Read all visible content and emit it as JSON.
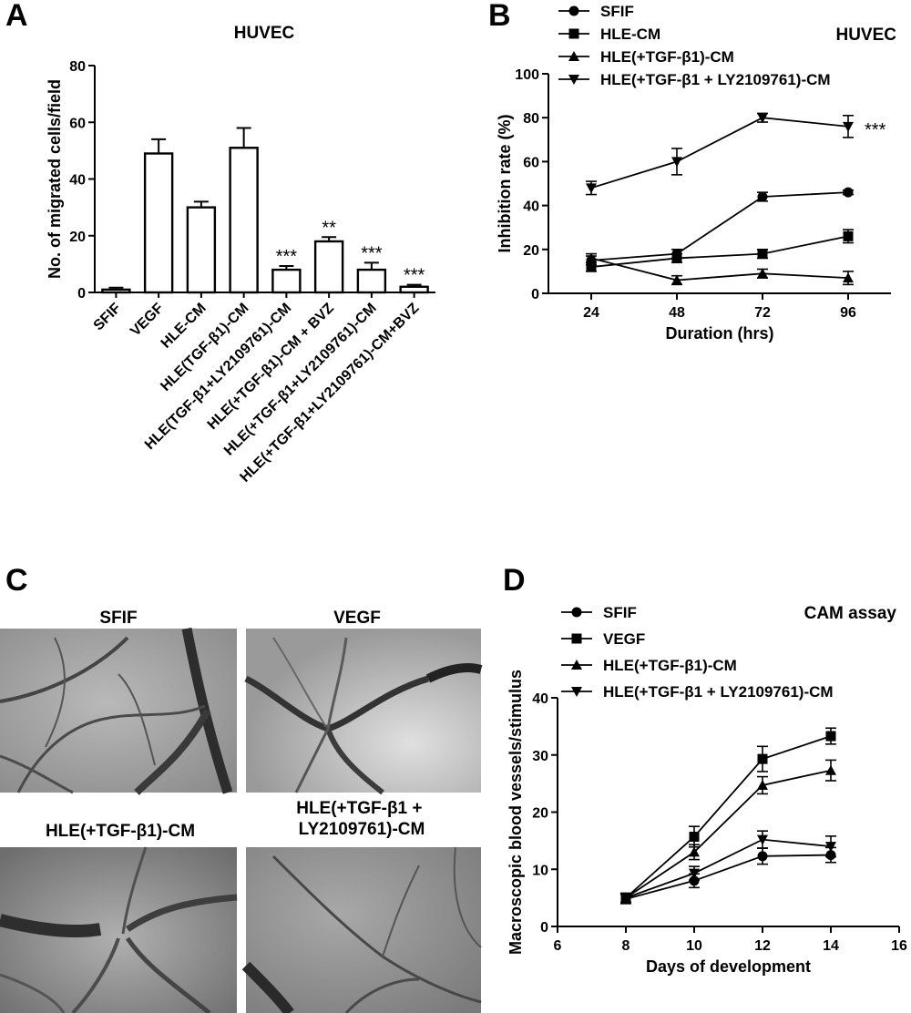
{
  "panels": {
    "A": "A",
    "B": "B",
    "C": "C",
    "D": "D"
  },
  "chart_data": [
    {
      "panel": "A",
      "type": "bar",
      "title": "HUVEC",
      "ylabel": "No. of migrated cells/field",
      "xlabel": "",
      "ylim": [
        0,
        80
      ],
      "yticks": [
        0,
        20,
        40,
        60,
        80
      ],
      "categories": [
        "SFIF",
        "VEGF",
        "HLE-CM",
        "HLE(TGF-β1)-CM",
        "HLE(TGF-β1+LY2109761)-CM",
        "HLE(+TGF-β1)-CM + BVZ",
        "HLE(+TGF-β1+LY2109761)-CM",
        "HLE(+TGF-β1+LY2109761)-CM+BVZ"
      ],
      "values": [
        1,
        49,
        30,
        51,
        8,
        18,
        8,
        2
      ],
      "errors": [
        0.7,
        5,
        2,
        7,
        1.3,
        1.5,
        2.5,
        0.7
      ],
      "significance": [
        "",
        "",
        "",
        "",
        "***",
        "**",
        "***",
        "***"
      ]
    },
    {
      "panel": "B",
      "type": "line",
      "title": "HUVEC",
      "xlabel": "Duration (hrs)",
      "ylabel": "Inhibition  rate (%)",
      "xticks": [
        24,
        48,
        72,
        96
      ],
      "ylim": [
        0,
        100
      ],
      "yticks": [
        0,
        20,
        40,
        60,
        80,
        100
      ],
      "legend_position": "top-left",
      "series": [
        {
          "name": "SFIF",
          "marker": "circle",
          "x": [
            24,
            48,
            72,
            96
          ],
          "values": [
            15,
            18,
            44,
            46
          ],
          "errors": [
            2,
            2,
            2,
            1
          ]
        },
        {
          "name": "HLE-CM",
          "marker": "square",
          "x": [
            24,
            48,
            72,
            96
          ],
          "values": [
            12,
            16,
            18,
            26
          ],
          "errors": [
            2,
            2,
            2,
            3
          ]
        },
        {
          "name": "HLE(+TGF-β1)-CM",
          "marker": "triangle-up",
          "x": [
            24,
            48,
            72,
            96
          ],
          "values": [
            16,
            6,
            9,
            7
          ],
          "errors": [
            2,
            2,
            2,
            3
          ]
        },
        {
          "name": "HLE(+TGF-β1 + LY2109761)-CM",
          "marker": "triangle-down",
          "x": [
            24,
            48,
            72,
            96
          ],
          "values": [
            48,
            60,
            80,
            76
          ],
          "errors": [
            3,
            6,
            2,
            5
          ]
        }
      ],
      "annotations": [
        {
          "text": "***",
          "x": 96,
          "y": 76
        }
      ]
    },
    {
      "panel": "D",
      "type": "line",
      "title": "CAM assay",
      "xlabel": "Days of development",
      "ylabel": "Macroscopic blood vessels/stimulus",
      "xlim": [
        6,
        16
      ],
      "xticks": [
        6,
        8,
        10,
        12,
        14,
        16
      ],
      "ylim": [
        0,
        40
      ],
      "yticks": [
        0,
        10,
        20,
        30,
        40
      ],
      "legend_position": "top-left",
      "series": [
        {
          "name": "SFIF",
          "marker": "circle",
          "x": [
            8,
            10,
            12,
            14
          ],
          "values": [
            4.8,
            8,
            12.3,
            12.5
          ],
          "errors": [
            0.8,
            1.2,
            1.4,
            1.3
          ]
        },
        {
          "name": "VEGF",
          "marker": "square",
          "x": [
            8,
            10,
            12,
            14
          ],
          "values": [
            5,
            15.7,
            29.3,
            33.3
          ],
          "errors": [
            0.8,
            1.8,
            2.2,
            1.4
          ]
        },
        {
          "name": "HLE(+TGF-β1)-CM",
          "marker": "triangle-up",
          "x": [
            8,
            10,
            12,
            14
          ],
          "values": [
            5,
            13,
            24.7,
            27.3
          ],
          "errors": [
            0.8,
            1.3,
            1.5,
            1.8
          ]
        },
        {
          "name": "HLE(+TGF-β1 + LY2109761)-CM",
          "marker": "triangle-down",
          "x": [
            8,
            10,
            12,
            14
          ],
          "values": [
            5,
            9.3,
            15.2,
            14
          ],
          "errors": [
            0.8,
            1.2,
            1.5,
            1.8
          ]
        }
      ]
    }
  ],
  "photos": {
    "labels": [
      "SFIF",
      "VEGF",
      "HLE(+TGF-β1)-CM",
      "HLE(+TGF-β1 +\nLY2109761)-CM"
    ]
  }
}
